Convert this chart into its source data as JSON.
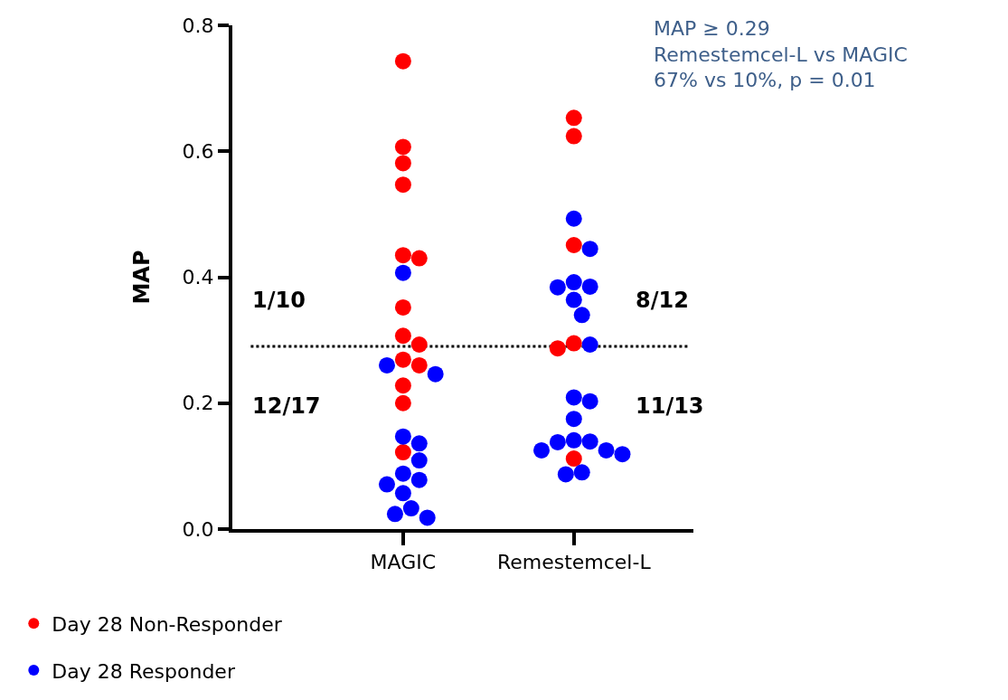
{
  "chart_data": {
    "type": "scatter",
    "ylabel": "MAP",
    "annotations": [
      "1/10",
      "12/17",
      "8/12",
      "11/13",
      "MAP ≥ 0.29\nRemestemcel-L vs MAGIC\n67% vs 10%, p = 0.01"
    ],
    "series": [
      {
        "name": "Day 28 Non-Responder",
        "color": "#ff0000",
        "x": [
          "MAGIC",
          "MAGIC",
          "MAGIC",
          "MAGIC",
          "MAGIC",
          "MAGIC",
          "MAGIC",
          "MAGIC",
          "MAGIC",
          "MAGIC",
          "MAGIC",
          "MAGIC",
          "MAGIC",
          "MAGIC",
          "Remestemcel-L",
          "Remestemcel-L",
          "Remestemcel-L",
          "Remestemcel-L",
          "Remestemcel-L",
          "Remestemcel-L"
        ],
        "values": [
          0.743,
          0.607,
          0.581,
          0.547,
          0.43,
          0.435,
          0.352,
          0.307,
          0.293,
          0.26,
          0.269,
          0.228,
          0.2,
          0.122,
          0.653,
          0.624,
          0.451,
          0.295,
          0.287,
          0.112
        ]
      },
      {
        "name": "Day 28 Responder",
        "color": "#0000ff",
        "x": [
          "MAGIC",
          "MAGIC",
          "MAGIC",
          "MAGIC",
          "MAGIC",
          "MAGIC",
          "MAGIC",
          "MAGIC",
          "MAGIC",
          "MAGIC",
          "MAGIC",
          "MAGIC",
          "MAGIC",
          "Remestemcel-L",
          "Remestemcel-L",
          "Remestemcel-L",
          "Remestemcel-L",
          "Remestemcel-L",
          "Remestemcel-L",
          "Remestemcel-L",
          "Remestemcel-L",
          "Remestemcel-L",
          "Remestemcel-L",
          "Remestemcel-L",
          "Remestemcel-L",
          "Remestemcel-L",
          "Remestemcel-L",
          "Remestemcel-L",
          "Remestemcel-L",
          "Remestemcel-L",
          "Remestemcel-L",
          "Remestemcel-L"
        ],
        "values": [
          0.407,
          0.246,
          0.26,
          0.147,
          0.136,
          0.109,
          0.078,
          0.088,
          0.071,
          0.057,
          0.033,
          0.018,
          0.024,
          0.493,
          0.445,
          0.385,
          0.392,
          0.384,
          0.364,
          0.34,
          0.293,
          0.203,
          0.209,
          0.175,
          0.139,
          0.141,
          0.125,
          0.119,
          0.125,
          0.138,
          0.087,
          0.09
        ]
      }
    ],
    "categories": [
      "MAGIC",
      "Remestemcel-L"
    ],
    "ylim": [
      0,
      0.8
    ],
    "yticks": [
      {
        "value": 0,
        "label": "0.0"
      },
      {
        "value": 0.2,
        "label": "0.2"
      },
      {
        "value": 0.4,
        "label": "0.4"
      },
      {
        "value": 0.6,
        "label": "0.6"
      },
      {
        "value": 0.8,
        "label": "0.8"
      }
    ],
    "ref_lines": [
      {
        "axis": "y",
        "value": 0.29,
        "color": "#000000",
        "line_style": "dotted"
      }
    ],
    "marker": "circle",
    "legend": "bottom left",
    "grid": false
  }
}
